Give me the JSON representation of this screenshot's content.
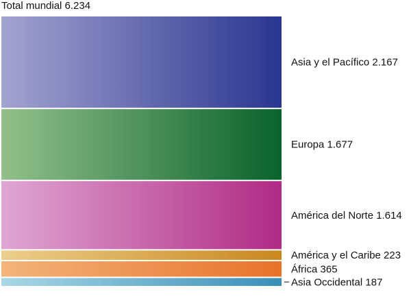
{
  "chart_data": {
    "type": "bar",
    "title": "Total mundial 6.234",
    "categories": [
      "Asia y el Pacífico",
      "Europa",
      "América del Norte",
      "América y el Caribe",
      "África",
      "Asia Occidental"
    ],
    "values": [
      2167,
      1677,
      1614,
      223,
      365,
      187
    ],
    "labels": [
      "Asia y el Pacífico 2.167",
      "Europa 1.677",
      "América del Norte 1.614",
      "América y el Caribe 223",
      "África 365",
      "Asia Occidental 187"
    ],
    "colors": [
      [
        "#a3a3d0",
        "#2a3690"
      ],
      [
        "#93c08a",
        "#09622c"
      ],
      [
        "#dfa6d3",
        "#b02b84"
      ],
      [
        "#ebcf8c",
        "#c9871e"
      ],
      [
        "#f3b47a",
        "#e7722a"
      ],
      [
        "#a9d7e6",
        "#3a8fb7"
      ]
    ]
  }
}
